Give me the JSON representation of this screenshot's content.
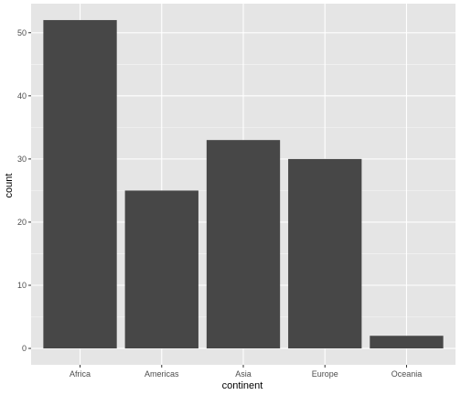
{
  "chart_data": {
    "type": "bar",
    "title": "",
    "xlabel": "continent",
    "ylabel": "count",
    "categories": [
      "Africa",
      "Americas",
      "Asia",
      "Europe",
      "Oceania"
    ],
    "values": [
      52,
      25,
      33,
      30,
      2
    ],
    "ylim": [
      -2.6,
      54.6
    ],
    "yticks": [
      0,
      10,
      20,
      30,
      40,
      50
    ],
    "grid": true,
    "colors": {
      "panel_background": "#e5e5e5",
      "grid_major": "#ffffff",
      "bar_fill": "#474747"
    }
  }
}
